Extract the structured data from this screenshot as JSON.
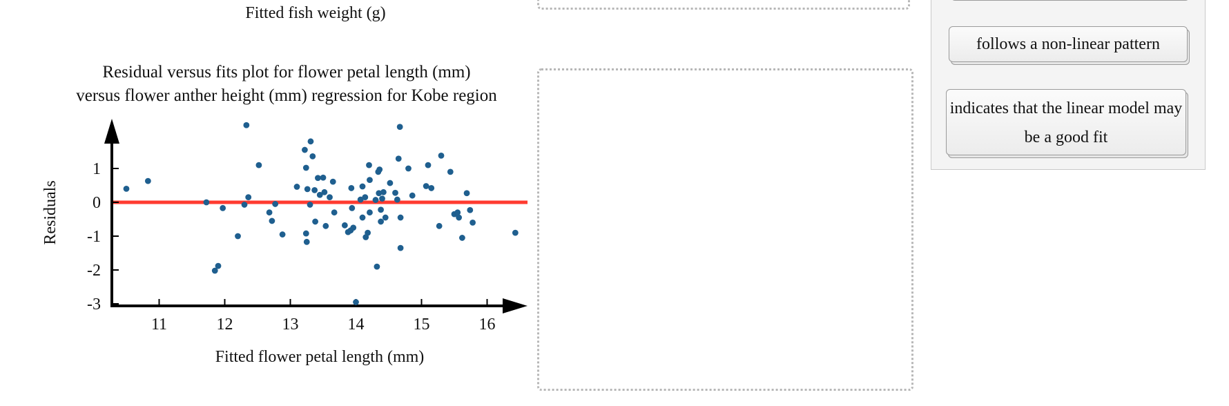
{
  "previous_chart": {
    "xlabel": "Fitted fish weight (g)"
  },
  "chart_data": {
    "type": "scatter",
    "title": "Residual versus fits plot for flower petal length (mm) versus flower anther height (mm) regression for Kobe region",
    "title_lines": [
      "Residual versus fits plot for flower petal length (mm)",
      "versus flower anther height (mm) regression for Kobe region"
    ],
    "xlabel": "Fitted flower petal length (mm)",
    "ylabel": "Residuals",
    "xticks": [
      11,
      12,
      13,
      14,
      15,
      16
    ],
    "yticks": [
      1,
      0,
      -1,
      -2,
      -3
    ],
    "ytick_labels": [
      "1",
      "0",
      "-1",
      "-2",
      "-3"
    ],
    "xlim": [
      10.3,
      16.7
    ],
    "ylim": [
      -3.1,
      2.3
    ],
    "reference_line": {
      "y": 0,
      "color": "#ff3b30"
    },
    "point_color": "#1f5f8f",
    "points": [
      [
        10.5,
        0.4
      ],
      [
        10.83,
        0.63
      ],
      [
        11.72,
        0.0
      ],
      [
        11.85,
        -2.02
      ],
      [
        11.9,
        -1.88
      ],
      [
        11.97,
        -0.17
      ],
      [
        12.2,
        -1.0
      ],
      [
        12.3,
        -0.07
      ],
      [
        12.33,
        2.28
      ],
      [
        12.36,
        0.15
      ],
      [
        12.52,
        1.1
      ],
      [
        12.68,
        -0.3
      ],
      [
        12.72,
        -0.55
      ],
      [
        12.77,
        -0.05
      ],
      [
        12.88,
        -0.95
      ],
      [
        13.1,
        0.46
      ],
      [
        13.22,
        1.55
      ],
      [
        13.24,
        1.02
      ],
      [
        13.24,
        -0.92
      ],
      [
        13.25,
        -1.17
      ],
      [
        13.26,
        0.39
      ],
      [
        13.3,
        -0.07
      ],
      [
        13.31,
        1.8
      ],
      [
        13.34,
        1.36
      ],
      [
        13.37,
        0.36
      ],
      [
        13.38,
        -0.57
      ],
      [
        13.42,
        0.72
      ],
      [
        13.45,
        0.22
      ],
      [
        13.5,
        0.73
      ],
      [
        13.52,
        0.3
      ],
      [
        13.54,
        -0.7
      ],
      [
        13.6,
        0.15
      ],
      [
        13.65,
        0.61
      ],
      [
        13.67,
        -0.3
      ],
      [
        13.83,
        -0.68
      ],
      [
        13.88,
        -0.88
      ],
      [
        13.92,
        -0.83
      ],
      [
        13.93,
        0.42
      ],
      [
        13.94,
        -0.17
      ],
      [
        13.96,
        -0.75
      ],
      [
        14.0,
        -2.95
      ],
      [
        14.07,
        0.08
      ],
      [
        14.1,
        0.47
      ],
      [
        14.1,
        -0.45
      ],
      [
        14.14,
        0.15
      ],
      [
        14.15,
        -1.03
      ],
      [
        14.18,
        -0.9
      ],
      [
        14.2,
        1.1
      ],
      [
        14.21,
        0.66
      ],
      [
        14.21,
        -0.3
      ],
      [
        14.3,
        0.07
      ],
      [
        14.32,
        -1.9
      ],
      [
        14.34,
        0.9
      ],
      [
        14.35,
        0.27
      ],
      [
        14.36,
        0.97
      ],
      [
        14.38,
        -0.22
      ],
      [
        14.38,
        -0.57
      ],
      [
        14.4,
        0.11
      ],
      [
        14.42,
        0.3
      ],
      [
        14.45,
        -0.45
      ],
      [
        14.52,
        0.57
      ],
      [
        14.6,
        0.28
      ],
      [
        14.63,
        0.08
      ],
      [
        14.65,
        1.29
      ],
      [
        14.67,
        2.23
      ],
      [
        14.68,
        -1.35
      ],
      [
        14.68,
        -0.45
      ],
      [
        14.8,
        1.0
      ],
      [
        14.86,
        0.2
      ],
      [
        15.07,
        0.48
      ],
      [
        15.1,
        1.1
      ],
      [
        15.15,
        0.42
      ],
      [
        15.27,
        -0.7
      ],
      [
        15.3,
        1.38
      ],
      [
        15.44,
        0.9
      ],
      [
        15.5,
        -0.35
      ],
      [
        15.55,
        -0.3
      ],
      [
        15.57,
        -0.45
      ],
      [
        15.62,
        -1.05
      ],
      [
        15.69,
        0.27
      ],
      [
        15.74,
        -0.23
      ],
      [
        15.78,
        -0.6
      ],
      [
        16.43,
        -0.9
      ]
    ]
  },
  "answer_bank": {
    "tiles": [
      {
        "label": ""
      },
      {
        "label": "follows a non-linear pattern"
      },
      {
        "label": "indicates that the linear model may be a good fit"
      }
    ]
  }
}
